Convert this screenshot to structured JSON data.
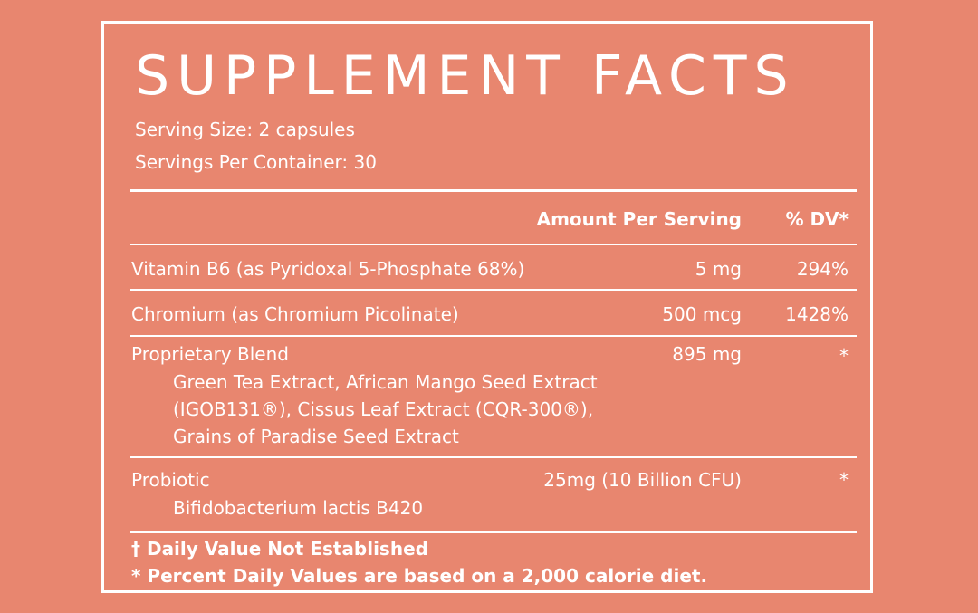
{
  "title": "SUPPLEMENT FACTS",
  "serving_size": "Serving Size: 2 capsules",
  "servings_per_container": "Servings Per Container: 30",
  "header": {
    "amount": "Amount Per Serving",
    "dv": "% DV*"
  },
  "rows": [
    {
      "name": "Vitamin B6 (as Pyridoxal 5-Phosphate 68%)",
      "amount": "5 mg",
      "dv": "294%"
    },
    {
      "name": "Chromium (as Chromium Picolinate)",
      "amount": "500 mcg",
      "dv": "1428%"
    },
    {
      "name": "Proprietary Blend",
      "amount": "895 mg",
      "dv": "*",
      "sub": [
        "Green Tea  Extract, African Mango Seed Extract",
        "(IGOB131®), Cissus Leaf Extract (CQR-300®),",
        "Grains of Paradise Seed Extract"
      ]
    },
    {
      "name": "Probiotic",
      "amount": "25mg (10 Billion CFU)",
      "dv": "*",
      "sub": [
        "Bifidobacterium lactis B420"
      ]
    }
  ],
  "footer": {
    "note1": "† Daily Value Not Established",
    "note2": "*  Percent Daily Values are based on a 2,000 calorie diet."
  },
  "colors": {
    "background": "#e8866f",
    "text": "#ffffff"
  }
}
